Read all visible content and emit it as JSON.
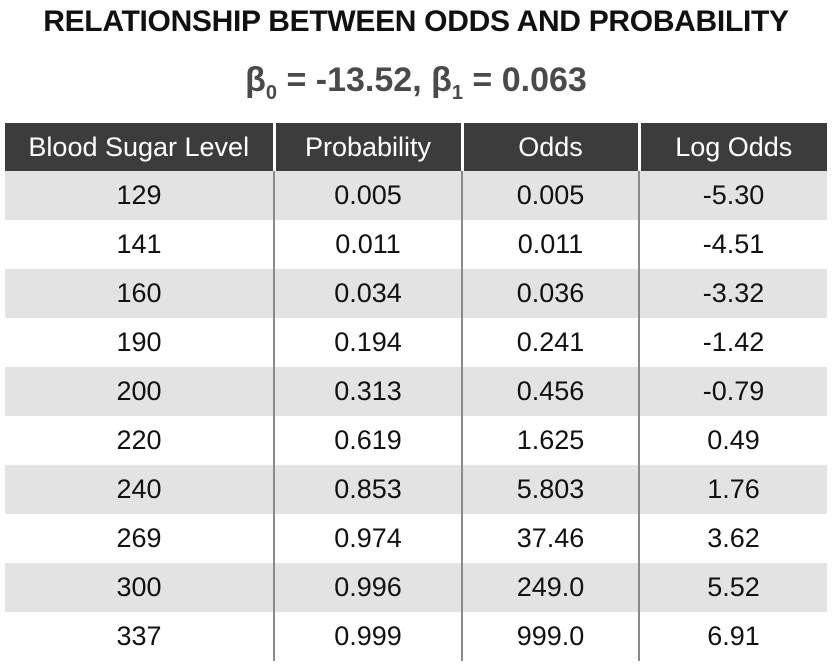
{
  "title": "RELATIONSHIP BETWEEN ODDS AND PROBABILITY",
  "subtitle": {
    "beta": "β",
    "b0_sub": "0",
    "b0_text": " = -13.52, ",
    "b1_sub": "1",
    "b1_text": " = 0.063"
  },
  "table": {
    "headers": [
      "Blood Sugar Level",
      "Probability",
      "Odds",
      "Log Odds"
    ],
    "rows": [
      [
        "129",
        "0.005",
        "0.005",
        "-5.30"
      ],
      [
        "141",
        "0.011",
        "0.011",
        "-4.51"
      ],
      [
        "160",
        "0.034",
        "0.036",
        "-3.32"
      ],
      [
        "190",
        "0.194",
        "0.241",
        "-1.42"
      ],
      [
        "200",
        "0.313",
        "0.456",
        "-0.79"
      ],
      [
        "220",
        "0.619",
        "1.625",
        "0.49"
      ],
      [
        "240",
        "0.853",
        "5.803",
        "1.76"
      ],
      [
        "269",
        "0.974",
        "37.46",
        "3.62"
      ],
      [
        "300",
        "0.996",
        "249.0",
        "5.52"
      ],
      [
        "337",
        "0.999",
        "999.0",
        "6.91"
      ]
    ]
  },
  "colors": {
    "header_bg": "#3c3c3c",
    "row_shaded": "#e3e3e3",
    "row_plain": "#ffffff"
  }
}
